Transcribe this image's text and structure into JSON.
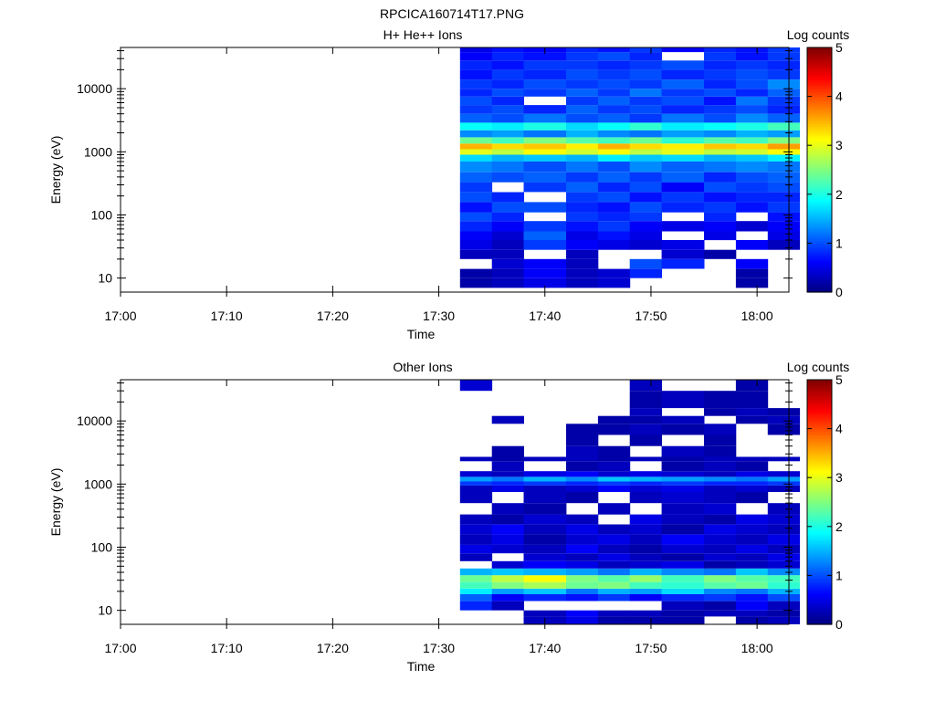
{
  "figure": {
    "title": "RPCICA160714T17.PNG"
  },
  "chart_data": [
    {
      "type": "heatmap",
      "title": "H+ He++ Ions",
      "xlabel": "Time",
      "ylabel": "Energy (eV)",
      "x_ticks": [
        "17:00",
        "17:10",
        "17:20",
        "17:30",
        "17:40",
        "17:50",
        "18:00"
      ],
      "x_range": [
        "17:00",
        "18:03"
      ],
      "y_scale": "log",
      "y_ticks": [
        "10",
        "100",
        "1000",
        "10000"
      ],
      "y_range": [
        6,
        45000
      ],
      "colorbar": {
        "label": "Log counts",
        "range": [
          0,
          5
        ],
        "ticks": [
          "0",
          "1",
          "2",
          "3",
          "4",
          "5"
        ],
        "colormap": "jet"
      },
      "time_bins": [
        "17:32",
        "17:35",
        "17:38",
        "17:42",
        "17:45",
        "17:48",
        "17:51",
        "17:55",
        "17:58",
        "18:01"
      ],
      "bands": [
        {
          "e": [
            7,
            10
          ],
          "v": [
            0.2,
            0.3,
            0.5,
            0.3,
            0.4,
            -1,
            -1,
            -1,
            0.2,
            -1
          ]
        },
        {
          "e": [
            10,
            14
          ],
          "v": [
            0.2,
            0.3,
            0.6,
            0.3,
            0.4,
            0.8,
            -1,
            -1,
            0.2,
            -1
          ]
        },
        {
          "e": [
            14,
            20
          ],
          "v": [
            -1,
            0.4,
            0.6,
            0.3,
            -1,
            1.0,
            0.8,
            -1,
            0.6,
            -1
          ]
        },
        {
          "e": [
            20,
            28
          ],
          "v": [
            0.3,
            0.3,
            -1,
            0.3,
            -1,
            -1,
            0.4,
            0.2,
            -1,
            -1
          ]
        },
        {
          "e": [
            28,
            40
          ],
          "v": [
            0.5,
            0.3,
            0.9,
            0.6,
            0.5,
            0.4,
            0.5,
            -1,
            0.6,
            0.3
          ]
        },
        {
          "e": [
            40,
            55
          ],
          "v": [
            0.6,
            0.4,
            1.1,
            0.5,
            0.7,
            0.5,
            -1,
            0.5,
            -1,
            0.5
          ]
        },
        {
          "e": [
            55,
            80
          ],
          "v": [
            0.8,
            0.6,
            0.9,
            0.7,
            0.9,
            0.6,
            0.5,
            0.6,
            0.4,
            0.6
          ]
        },
        {
          "e": [
            80,
            110
          ],
          "v": [
            1.0,
            0.8,
            -1,
            0.9,
            0.8,
            0.9,
            -1,
            0.8,
            -1,
            0.7
          ]
        },
        {
          "e": [
            110,
            160
          ],
          "v": [
            0.7,
            1.0,
            1.0,
            0.8,
            0.7,
            1.0,
            0.8,
            0.9,
            0.7,
            0.9
          ]
        },
        {
          "e": [
            160,
            230
          ],
          "v": [
            1.0,
            0.8,
            -1,
            0.9,
            1.0,
            0.7,
            0.9,
            0.7,
            0.8,
            0.8
          ]
        },
        {
          "e": [
            230,
            330
          ],
          "v": [
            0.9,
            -1,
            0.9,
            1.1,
            0.8,
            1.0,
            0.6,
            1.0,
            0.9,
            1.0
          ]
        },
        {
          "e": [
            330,
            480
          ],
          "v": [
            1.1,
            1.0,
            1.1,
            0.9,
            1.1,
            0.9,
            1.1,
            0.8,
            1.0,
            1.1
          ]
        },
        {
          "e": [
            480,
            700
          ],
          "v": [
            1.3,
            1.2,
            1.0,
            1.2,
            1.0,
            1.3,
            1.1,
            1.2,
            1.3,
            1.2
          ]
        },
        {
          "e": [
            700,
            900
          ],
          "v": [
            1.7,
            1.5,
            1.6,
            1.5,
            1.8,
            1.6,
            1.7,
            1.5,
            1.6,
            1.8
          ]
        },
        {
          "e": [
            900,
            1100
          ],
          "v": [
            3.0,
            2.8,
            3.1,
            2.9,
            3.1,
            2.8,
            3.0,
            2.8,
            2.9,
            3.1
          ]
        },
        {
          "e": [
            1100,
            1350
          ],
          "v": [
            3.5,
            3.3,
            3.4,
            3.2,
            3.5,
            3.3,
            3.2,
            3.4,
            3.3,
            3.6
          ]
        },
        {
          "e": [
            1350,
            1700
          ],
          "v": [
            2.4,
            2.2,
            2.5,
            2.3,
            2.2,
            2.4,
            2.1,
            2.3,
            2.2,
            2.5
          ]
        },
        {
          "e": [
            1700,
            2200
          ],
          "v": [
            1.3,
            1.4,
            1.2,
            1.5,
            1.3,
            1.2,
            1.4,
            1.3,
            1.5,
            1.4
          ]
        },
        {
          "e": [
            2200,
            2900
          ],
          "v": [
            1.9,
            1.8,
            2.0,
            1.7,
            1.9,
            2.1,
            1.8,
            1.9,
            2.0,
            2.2
          ]
        },
        {
          "e": [
            2900,
            4000
          ],
          "v": [
            1.1,
            1.0,
            1.2,
            1.0,
            1.1,
            0.9,
            1.2,
            1.0,
            1.3,
            1.1
          ]
        },
        {
          "e": [
            4000,
            5500
          ],
          "v": [
            0.9,
            1.0,
            0.8,
            1.1,
            0.9,
            1.0,
            0.8,
            0.9,
            1.0,
            0.8
          ]
        },
        {
          "e": [
            5500,
            7500
          ],
          "v": [
            1.0,
            0.8,
            -1,
            0.9,
            1.1,
            0.9,
            1.0,
            0.7,
            1.2,
            0.9
          ]
        },
        {
          "e": [
            7500,
            10000
          ],
          "v": [
            0.8,
            1.0,
            0.9,
            1.1,
            0.9,
            1.2,
            0.9,
            1.0,
            0.8,
            1.1
          ]
        },
        {
          "e": [
            10000,
            14000
          ],
          "v": [
            0.9,
            0.8,
            1.0,
            0.9,
            1.0,
            0.9,
            1.1,
            0.8,
            1.0,
            1.3
          ]
        },
        {
          "e": [
            14000,
            20000
          ],
          "v": [
            0.7,
            0.9,
            0.8,
            1.0,
            0.9,
            1.0,
            0.8,
            0.9,
            1.0,
            0.9
          ]
        },
        {
          "e": [
            20000,
            28000
          ],
          "v": [
            0.8,
            0.7,
            0.9,
            0.9,
            0.8,
            0.9,
            1.0,
            0.8,
            0.9,
            0.8
          ]
        },
        {
          "e": [
            28000,
            38000
          ],
          "v": [
            0.6,
            0.8,
            0.7,
            0.9,
            1.0,
            0.8,
            -1,
            0.9,
            0.7,
            0.9
          ]
        },
        {
          "e": [
            38000,
            45000
          ],
          "v": [
            0.5,
            0.7,
            0.6,
            0.8,
            0.7,
            0.9,
            0.6,
            0.8,
            0.7,
            0.9
          ]
        }
      ]
    },
    {
      "type": "heatmap",
      "title": "Other Ions",
      "xlabel": "Time",
      "ylabel": "Energy (eV)",
      "x_ticks": [
        "17:00",
        "17:10",
        "17:20",
        "17:30",
        "17:40",
        "17:50",
        "18:00"
      ],
      "x_range": [
        "17:00",
        "18:03"
      ],
      "y_scale": "log",
      "y_ticks": [
        "10",
        "100",
        "1000",
        "10000"
      ],
      "y_range": [
        6,
        45000
      ],
      "colorbar": {
        "label": "Log counts",
        "range": [
          0,
          5
        ],
        "ticks": [
          "0",
          "1",
          "2",
          "3",
          "4",
          "5"
        ],
        "colormap": "jet"
      },
      "time_bins": [
        "17:32",
        "17:35",
        "17:38",
        "17:42",
        "17:45",
        "17:48",
        "17:51",
        "17:55",
        "17:58",
        "18:01"
      ],
      "bands": [
        {
          "e": [
            6,
            8
          ],
          "v": [
            -1,
            -1,
            0.3,
            0.5,
            0.2,
            0.2,
            0.2,
            -1,
            0.2,
            0.3
          ]
        },
        {
          "e": [
            8,
            10
          ],
          "v": [
            -1,
            -1,
            0.3,
            0.6,
            0.3,
            0.3,
            0.2,
            0.3,
            0.3,
            0.2
          ]
        },
        {
          "e": [
            10,
            14
          ],
          "v": [
            0.8,
            0.3,
            -1,
            -1,
            -1,
            -1,
            0.3,
            0.2,
            0.6,
            0.3
          ]
        },
        {
          "e": [
            14,
            18
          ],
          "v": [
            1.1,
            0.6,
            0.8,
            0.7,
            0.9,
            0.6,
            0.8,
            0.9,
            0.7,
            1.0
          ]
        },
        {
          "e": [
            18,
            22
          ],
          "v": [
            1.8,
            1.4,
            1.6,
            1.2,
            1.5,
            1.4,
            1.7,
            1.3,
            1.2,
            1.5
          ]
        },
        {
          "e": [
            22,
            28
          ],
          "v": [
            2.2,
            2.5,
            2.7,
            2.4,
            2.5,
            2.2,
            2.1,
            2.3,
            2.4,
            2.1
          ]
        },
        {
          "e": [
            28,
            36
          ],
          "v": [
            2.4,
            2.8,
            3.1,
            2.5,
            2.3,
            2.6,
            2.2,
            2.5,
            2.3,
            2.2
          ]
        },
        {
          "e": [
            36,
            46
          ],
          "v": [
            1.5,
            1.6,
            1.5,
            1.4,
            1.2,
            1.5,
            1.3,
            1.2,
            1.6,
            1.3
          ]
        },
        {
          "e": [
            46,
            60
          ],
          "v": [
            -1,
            0.4,
            0.6,
            0.5,
            0.3,
            0.4,
            0.5,
            0.2,
            0.3,
            0.4
          ]
        },
        {
          "e": [
            60,
            80
          ],
          "v": [
            0.3,
            -1,
            0.4,
            0.3,
            0.5,
            0.3,
            0.2,
            0.4,
            0.3,
            0.5
          ]
        },
        {
          "e": [
            80,
            110
          ],
          "v": [
            0.5,
            0.4,
            0.3,
            0.6,
            0.3,
            0.2,
            0.4,
            0.3,
            0.5,
            0.3
          ]
        },
        {
          "e": [
            110,
            160
          ],
          "v": [
            0.3,
            0.5,
            0.2,
            0.4,
            0.5,
            0.3,
            0.6,
            0.4,
            0.3,
            0.5
          ]
        },
        {
          "e": [
            160,
            230
          ],
          "v": [
            0.4,
            0.6,
            0.3,
            0.5,
            0.3,
            0.4,
            0.2,
            0.5,
            0.4,
            0.3
          ]
        },
        {
          "e": [
            230,
            330
          ],
          "v": [
            0.3,
            0.2,
            0.4,
            0.3,
            -1,
            0.5,
            0.3,
            0.2,
            0.5,
            0.4
          ]
        },
        {
          "e": [
            330,
            500
          ],
          "v": [
            -1,
            0.3,
            0.2,
            -1,
            0.3,
            -1,
            0.3,
            0.4,
            -1,
            0.3
          ]
        },
        {
          "e": [
            500,
            750
          ],
          "v": [
            0.3,
            -1,
            0.3,
            0.2,
            -1,
            0.3,
            0.4,
            0.3,
            0.2,
            -1
          ]
        },
        {
          "e": [
            750,
            950
          ],
          "v": [
            0.3,
            0.5,
            0.3,
            0.4,
            0.6,
            0.4,
            0.5,
            0.3,
            0.4,
            0.3
          ]
        },
        {
          "e": [
            950,
            1100
          ],
          "v": [
            0.9,
            0.8,
            0.9,
            0.8,
            0.9,
            0.8,
            0.9,
            0.8,
            0.8,
            0.9
          ]
        },
        {
          "e": [
            1100,
            1300
          ],
          "v": [
            1.4,
            1.2,
            1.5,
            1.3,
            1.6,
            1.5,
            1.4,
            1.3,
            1.2,
            1.4
          ]
        },
        {
          "e": [
            1300,
            1600
          ],
          "v": [
            0.4,
            0.3,
            0.5,
            0.6,
            0.4,
            0.5,
            0.4,
            0.3,
            0.5,
            0.4
          ]
        },
        {
          "e": [
            1600,
            2300
          ],
          "v": [
            -1,
            0.3,
            -1,
            0.2,
            0.3,
            -1,
            0.2,
            0.3,
            0.2,
            -1
          ]
        },
        {
          "e": [
            2300,
            2700
          ],
          "v": [
            0.3,
            0.2,
            0.3,
            0.3,
            0.2,
            0.3,
            0.2,
            0.3,
            0.3,
            0.3
          ]
        },
        {
          "e": [
            2700,
            4000
          ],
          "v": [
            -1,
            0.2,
            -1,
            0.3,
            0.2,
            -1,
            0.3,
            0.2,
            -1,
            -1
          ]
        },
        {
          "e": [
            4000,
            6000
          ],
          "v": [
            -1,
            -1,
            -1,
            0.2,
            -1,
            0.2,
            -1,
            0.2,
            -1,
            -1
          ]
        },
        {
          "e": [
            6000,
            9000
          ],
          "v": [
            -1,
            -1,
            -1,
            0.2,
            0.2,
            0.3,
            0.2,
            0.3,
            -1,
            0.2
          ]
        },
        {
          "e": [
            9000,
            12000
          ],
          "v": [
            -1,
            0.3,
            -1,
            -1,
            0.2,
            0.2,
            0.3,
            -1,
            0.2,
            0.3
          ]
        },
        {
          "e": [
            12000,
            16000
          ],
          "v": [
            -1,
            -1,
            -1,
            -1,
            -1,
            0.3,
            -1,
            0.2,
            0.3,
            0.2
          ]
        },
        {
          "e": [
            16000,
            30000
          ],
          "v": [
            -1,
            -1,
            -1,
            -1,
            -1,
            0.2,
            0.3,
            0.2,
            0.2,
            -1
          ]
        },
        {
          "e": [
            30000,
            45000
          ],
          "v": [
            0.4,
            -1,
            -1,
            -1,
            -1,
            0.3,
            -1,
            -1,
            0.2,
            -1
          ]
        }
      ]
    }
  ]
}
